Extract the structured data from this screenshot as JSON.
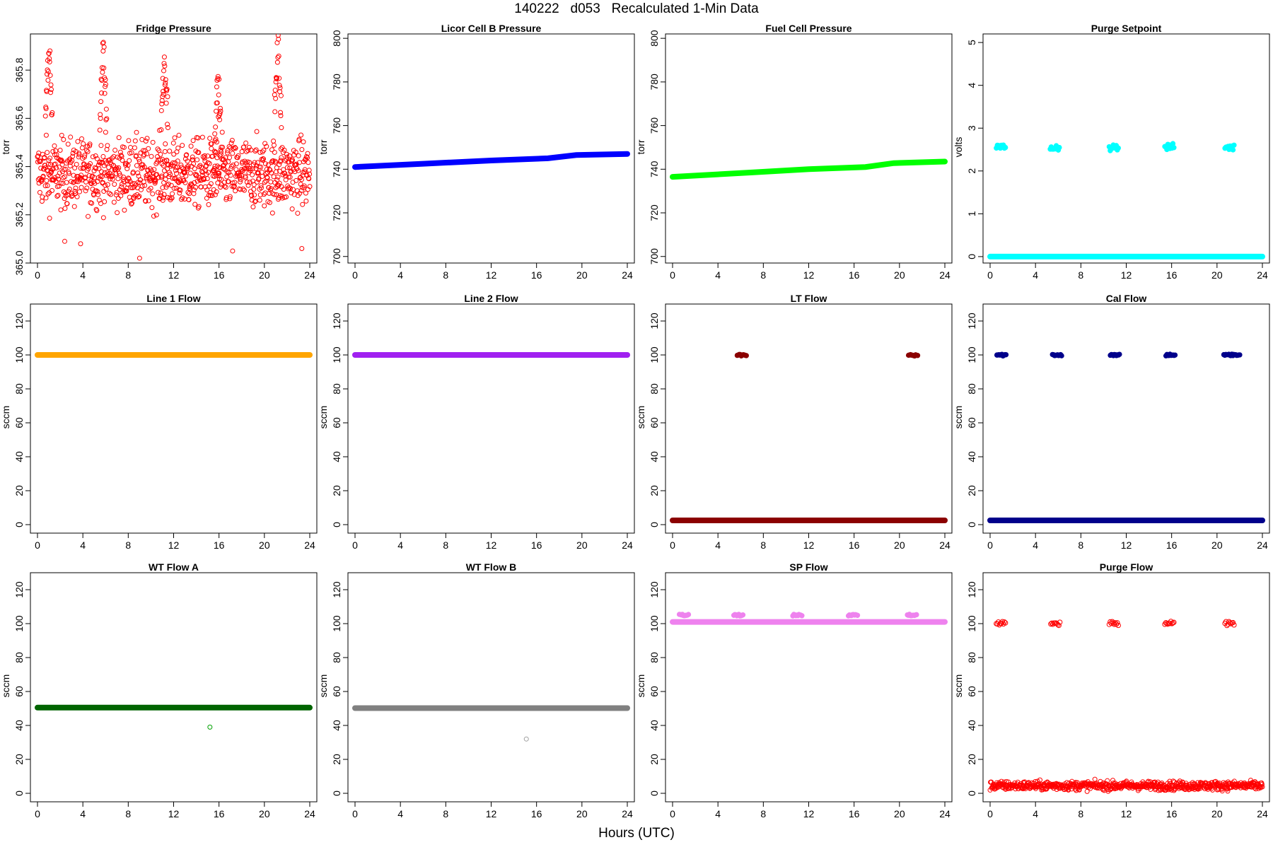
{
  "figure": {
    "title": "140222   d053   Recalculated 1-Min Data",
    "xlabel": "Hours (UTC)"
  },
  "chart_data": [
    {
      "type": "scatter",
      "title": "Fridge Pressure",
      "ylabel": "torr",
      "color": "#ff0000",
      "xlim": [
        0,
        24
      ],
      "ylim": [
        365.0,
        365.95
      ],
      "x_ticks": [
        "0",
        "4",
        "8",
        "12",
        "16",
        "20",
        "24"
      ],
      "y_ticks": [
        "365.0",
        "365.2",
        "365.4",
        "365.6",
        "365.8"
      ],
      "series": [
        {
          "mode": "noise",
          "base": 365.37,
          "spread": 0.07,
          "count": 900,
          "spikes": [
            {
              "x": 1.0,
              "y": 365.88
            },
            {
              "x": 5.8,
              "y": 365.9
            },
            {
              "x": 11.2,
              "y": 365.86
            },
            {
              "x": 15.9,
              "y": 365.74
            },
            {
              "x": 21.2,
              "y": 365.9
            }
          ],
          "outliers": [
            {
              "x": 9.0,
              "y": 365.02
            },
            {
              "x": 17.2,
              "y": 365.05
            },
            {
              "x": 23.3,
              "y": 365.06
            },
            {
              "x": 2.4,
              "y": 365.09
            },
            {
              "x": 3.8,
              "y": 365.08
            }
          ]
        }
      ]
    },
    {
      "type": "scatter",
      "title": "Licor Cell B Pressure",
      "ylabel": "torr",
      "color": "#0000ff",
      "xlim": [
        0,
        24
      ],
      "ylim": [
        697,
        802
      ],
      "x_ticks": [
        "0",
        "4",
        "8",
        "12",
        "16",
        "20",
        "24"
      ],
      "y_ticks": [
        "700",
        "720",
        "740",
        "760",
        "780",
        "800"
      ],
      "series": [
        {
          "mode": "line",
          "points": [
            [
              0,
              741
            ],
            [
              6,
              742.5
            ],
            [
              12,
              744
            ],
            [
              17,
              745
            ],
            [
              19.5,
              746.5
            ],
            [
              24,
              747
            ]
          ],
          "thick": true
        }
      ]
    },
    {
      "type": "scatter",
      "title": "Fuel Cell Pressure",
      "ylabel": "torr",
      "color": "#00ff00",
      "xlim": [
        0,
        24
      ],
      "ylim": [
        697,
        802
      ],
      "x_ticks": [
        "0",
        "4",
        "8",
        "12",
        "16",
        "20",
        "24"
      ],
      "y_ticks": [
        "700",
        "720",
        "740",
        "760",
        "780",
        "800"
      ],
      "series": [
        {
          "mode": "line",
          "points": [
            [
              0,
              736.5
            ],
            [
              7,
              738.5
            ],
            [
              12,
              740
            ],
            [
              17,
              741
            ],
            [
              19.5,
              742.8
            ],
            [
              24,
              743.5
            ]
          ],
          "thick": true
        }
      ]
    },
    {
      "type": "scatter",
      "title": "Purge Setpoint",
      "ylabel": "volts",
      "color": "#00ffff",
      "xlim": [
        0,
        24
      ],
      "ylim": [
        -0.15,
        5.2
      ],
      "x_ticks": [
        "0",
        "4",
        "8",
        "12",
        "16",
        "20",
        "24"
      ],
      "y_ticks": [
        "0",
        "1",
        "2",
        "3",
        "4",
        "5"
      ],
      "series": [
        {
          "mode": "line",
          "points": [
            [
              0,
              0
            ],
            [
              24,
              0
            ]
          ],
          "thick": true
        },
        {
          "mode": "clusters",
          "y": 2.55,
          "jitter": 0.04,
          "xs": [
            0.95,
            5.7,
            10.9,
            15.8,
            21.1
          ]
        }
      ]
    },
    {
      "type": "scatter",
      "title": "Line 1 Flow",
      "ylabel": "sccm",
      "color": "#ffa500",
      "xlim": [
        0,
        24
      ],
      "ylim": [
        -5,
        130
      ],
      "x_ticks": [
        "0",
        "4",
        "8",
        "12",
        "16",
        "20",
        "24"
      ],
      "y_ticks": [
        "0",
        "20",
        "40",
        "60",
        "80",
        "100",
        "120"
      ],
      "series": [
        {
          "mode": "line",
          "points": [
            [
              0,
              100
            ],
            [
              24,
              100
            ]
          ],
          "thick": true
        }
      ]
    },
    {
      "type": "scatter",
      "title": "Line 2 Flow",
      "ylabel": "sccm",
      "color": "#a020f0",
      "xlim": [
        0,
        24
      ],
      "ylim": [
        -5,
        130
      ],
      "x_ticks": [
        "0",
        "4",
        "8",
        "12",
        "16",
        "20",
        "24"
      ],
      "y_ticks": [
        "0",
        "20",
        "40",
        "60",
        "80",
        "100",
        "120"
      ],
      "series": [
        {
          "mode": "line",
          "points": [
            [
              0,
              100
            ],
            [
              24,
              100
            ]
          ],
          "thick": true
        }
      ]
    },
    {
      "type": "scatter",
      "title": "LT Flow",
      "ylabel": "sccm",
      "color": "#8b0000",
      "xlim": [
        0,
        24
      ],
      "ylim": [
        -5,
        130
      ],
      "x_ticks": [
        "0",
        "4",
        "8",
        "12",
        "16",
        "20",
        "24"
      ],
      "y_ticks": [
        "0",
        "20",
        "40",
        "60",
        "80",
        "100",
        "120"
      ],
      "series": [
        {
          "mode": "line",
          "points": [
            [
              0,
              2.5
            ],
            [
              24,
              2.5
            ]
          ],
          "thick": true
        },
        {
          "mode": "clusters",
          "y": 100,
          "jitter": 0.3,
          "xs": [
            6.1,
            21.2
          ]
        }
      ]
    },
    {
      "type": "scatter",
      "title": "Cal Flow",
      "ylabel": "sccm",
      "color": "#00008b",
      "xlim": [
        0,
        24
      ],
      "ylim": [
        -5,
        130
      ],
      "x_ticks": [
        "0",
        "4",
        "8",
        "12",
        "16",
        "20",
        "24"
      ],
      "y_ticks": [
        "0",
        "20",
        "40",
        "60",
        "80",
        "100",
        "120"
      ],
      "series": [
        {
          "mode": "line",
          "points": [
            [
              0,
              2.5
            ],
            [
              24,
              2.5
            ]
          ],
          "thick": true
        },
        {
          "mode": "clusters",
          "y": 100,
          "jitter": 0.3,
          "xs": [
            1.0,
            5.9,
            11.0,
            15.9,
            21.0,
            21.6
          ]
        }
      ]
    },
    {
      "type": "scatter",
      "title": "WT Flow A",
      "ylabel": "sccm",
      "color": "#006400",
      "xlim": [
        0,
        24
      ],
      "ylim": [
        -5,
        130
      ],
      "x_ticks": [
        "0",
        "4",
        "8",
        "12",
        "16",
        "20",
        "24"
      ],
      "y_ticks": [
        "0",
        "20",
        "40",
        "60",
        "80",
        "100",
        "120"
      ],
      "series": [
        {
          "mode": "line",
          "points": [
            [
              0,
              50.5
            ],
            [
              24,
              50.5
            ]
          ],
          "thick": true
        },
        {
          "mode": "points",
          "points": [
            [
              15.2,
              39
            ]
          ],
          "pointColor": "#00a000"
        }
      ]
    },
    {
      "type": "scatter",
      "title": "WT Flow B",
      "ylabel": "sccm",
      "color": "#808080",
      "xlim": [
        0,
        24
      ],
      "ylim": [
        -5,
        130
      ],
      "x_ticks": [
        "0",
        "4",
        "8",
        "12",
        "16",
        "20",
        "24"
      ],
      "y_ticks": [
        "0",
        "20",
        "40",
        "60",
        "80",
        "100",
        "120"
      ],
      "series": [
        {
          "mode": "line",
          "points": [
            [
              0,
              50.2
            ],
            [
              24,
              50.2
            ]
          ],
          "thick": true
        },
        {
          "mode": "points",
          "points": [
            [
              15.1,
              32
            ]
          ],
          "pointColor": "#a0a0a0"
        }
      ]
    },
    {
      "type": "scatter",
      "title": "SP Flow",
      "ylabel": "sccm",
      "color": "#ee82ee",
      "xlim": [
        0,
        24
      ],
      "ylim": [
        -5,
        130
      ],
      "x_ticks": [
        "0",
        "4",
        "8",
        "12",
        "16",
        "20",
        "24"
      ],
      "y_ticks": [
        "0",
        "20",
        "40",
        "60",
        "80",
        "100",
        "120"
      ],
      "series": [
        {
          "mode": "line",
          "points": [
            [
              0,
              101
            ],
            [
              24,
              101
            ]
          ],
          "thick": true
        },
        {
          "mode": "clusters",
          "y": 105,
          "jitter": 0.3,
          "xs": [
            1.0,
            5.8,
            11.0,
            15.9,
            21.1
          ]
        }
      ]
    },
    {
      "type": "scatter",
      "title": "Purge Flow",
      "ylabel": "sccm",
      "color": "#ff0000",
      "xlim": [
        0,
        24
      ],
      "ylim": [
        -5,
        130
      ],
      "x_ticks": [
        "0",
        "4",
        "8",
        "12",
        "16",
        "20",
        "24"
      ],
      "y_ticks": [
        "0",
        "20",
        "40",
        "60",
        "80",
        "100",
        "120"
      ],
      "series": [
        {
          "mode": "noise",
          "base": 4.5,
          "spread": 1.3,
          "count": 700,
          "open": true
        },
        {
          "mode": "clusters",
          "y": 100,
          "jitter": 0.6,
          "xs": [
            0.95,
            5.75,
            10.9,
            15.8,
            21.1
          ],
          "open": true
        }
      ]
    }
  ]
}
